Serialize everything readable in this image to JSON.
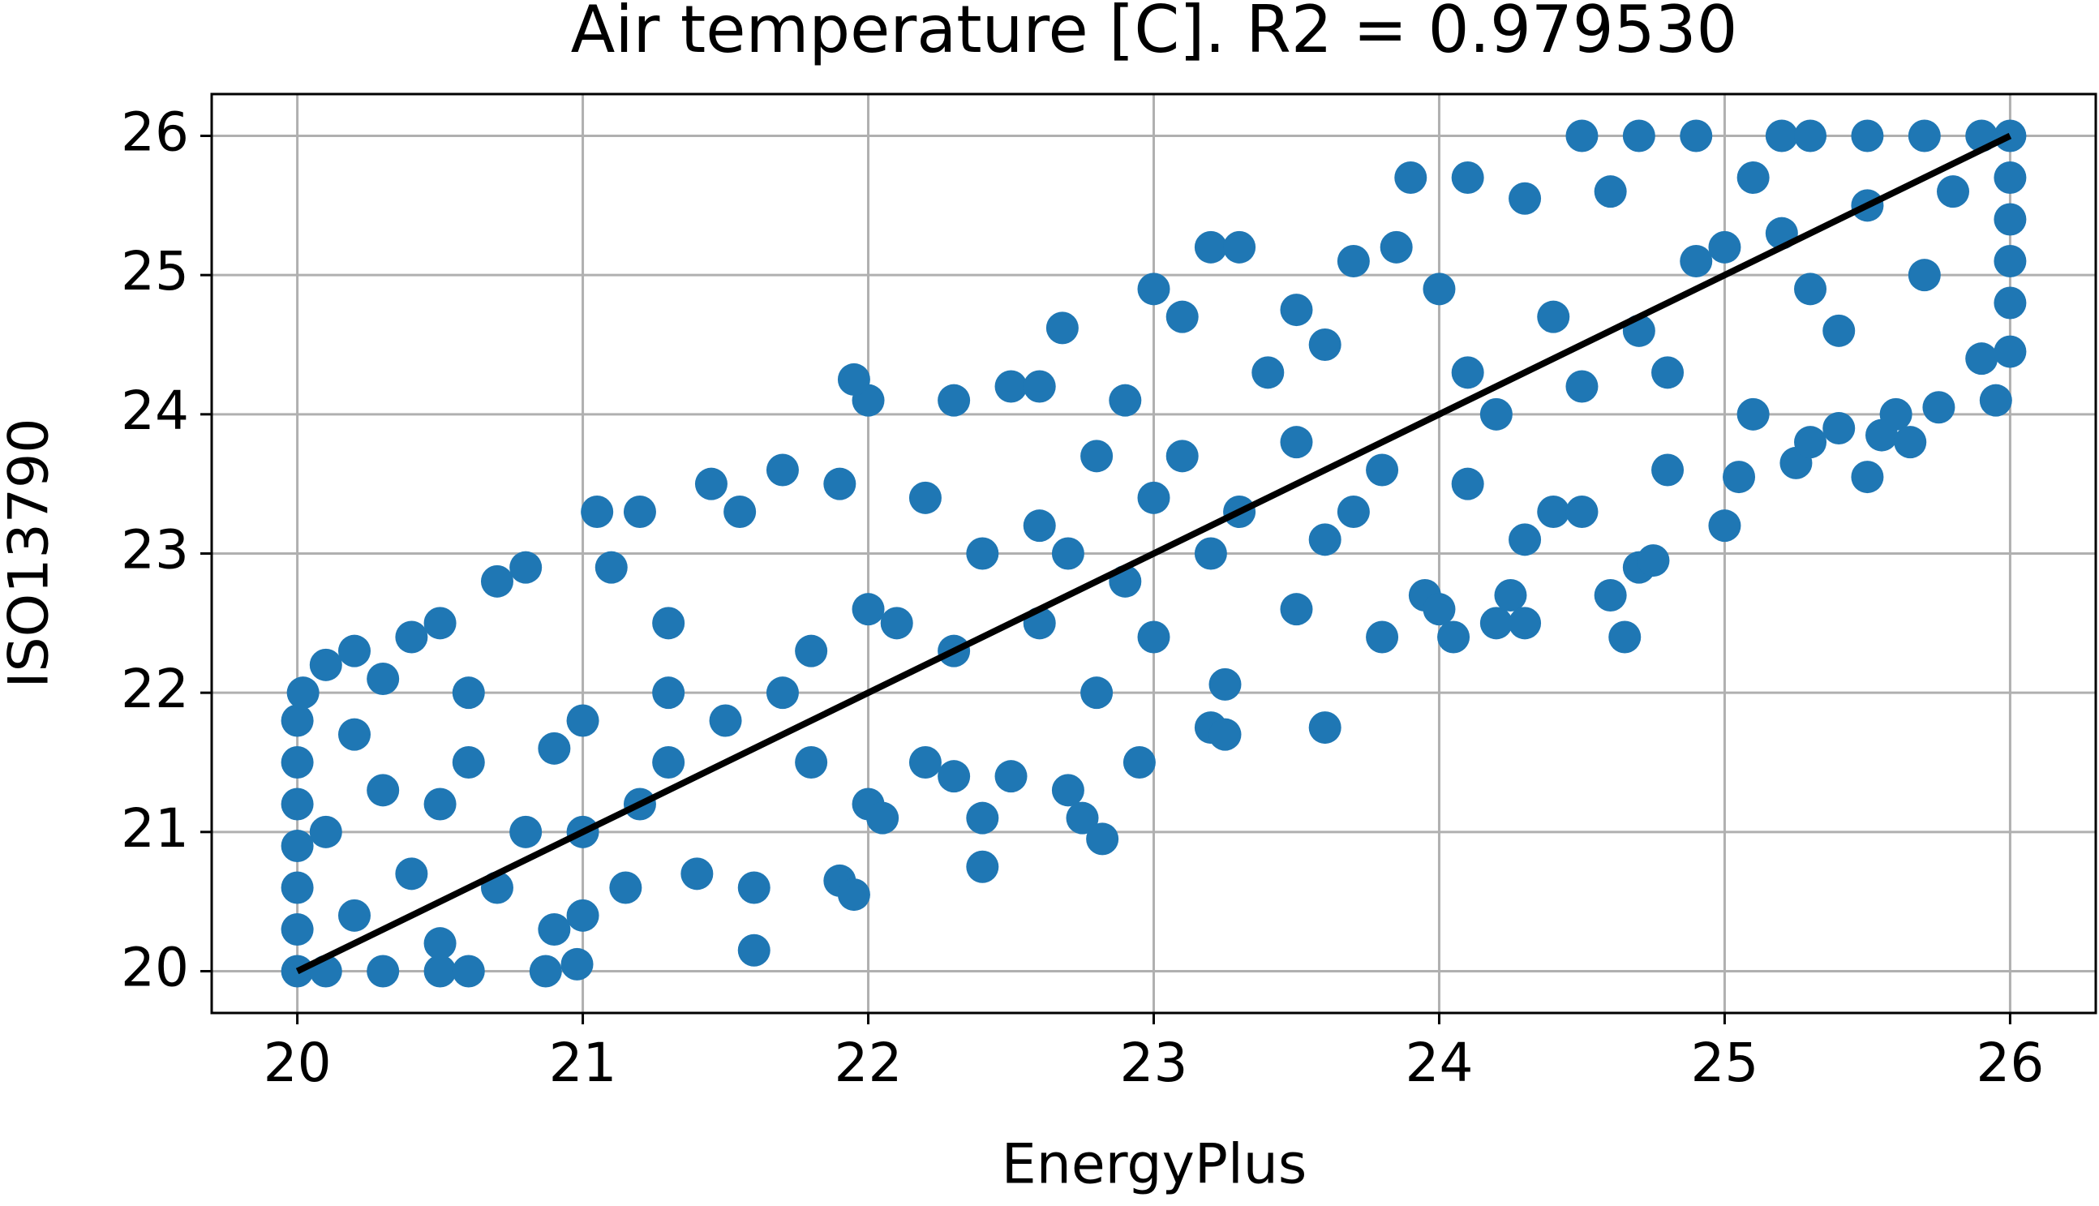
{
  "chart_data": {
    "type": "scatter",
    "title": "Air temperature [C]. R2 = 0.979530",
    "x_label": "EnergyPlus",
    "y_label": "ISO13790",
    "xlim": [
      19.7,
      26.3
    ],
    "ylim": [
      19.7,
      26.3
    ],
    "xticks": [
      20,
      21,
      22,
      23,
      24,
      25,
      26
    ],
    "yticks": [
      20,
      21,
      22,
      23,
      24,
      25,
      26
    ],
    "grid": true,
    "series": [
      {
        "color": "#1f77b4",
        "kind": "points",
        "x": [
          20,
          20,
          20,
          20,
          20,
          20,
          20,
          20.02,
          20.1,
          20.3,
          20.5,
          20.6,
          20.2,
          20.4,
          20.1,
          20.3,
          20.2,
          20.1,
          20.2,
          20.4,
          20.5,
          20.3,
          20.6,
          20.7,
          20.8,
          20.6,
          20.8,
          20.9,
          20.87,
          20.98,
          21.0,
          20.7,
          20.5,
          21,
          21.05,
          21.2,
          21.1,
          21.3,
          21.0,
          21.2,
          21.4,
          21.15,
          21.5,
          21.45,
          21.55,
          21.7,
          21.3,
          21.6,
          21.6,
          21.8,
          21.9,
          22,
          21.95,
          21.9,
          21.95,
          22.0,
          22.05,
          22.2,
          22.3,
          22.1,
          22.2,
          22.3,
          22.4,
          22.4,
          22.5,
          22.5,
          22.6,
          22.68,
          22.6,
          22.7,
          22.8,
          22.7,
          22.75,
          22.82,
          22.8,
          22.9,
          22.95,
          23,
          23.0,
          23.1,
          23.2,
          23.1,
          23.3,
          23.25,
          23.2,
          23.25,
          23.3,
          23.4,
          23.5,
          23.5,
          23.6,
          23.6,
          23.7,
          23.7,
          23.8,
          23.85,
          23.9,
          23.95,
          24.0,
          24.0,
          24.05,
          24.1,
          24.1,
          24.2,
          24.25,
          24.3,
          24.3,
          24.3,
          24.4,
          24.5,
          24.5,
          24.6,
          24.6,
          24.65,
          24.7,
          24.75,
          24.8,
          24.5,
          24.7,
          24.9,
          25.0,
          25.05,
          25.1,
          25.2,
          25.3,
          25.25,
          25.3,
          25.4,
          25.5,
          25.55,
          25.6,
          25.65,
          25.75,
          25.9,
          25.95,
          26,
          26,
          26,
          26,
          26,
          26,
          25.5,
          25.7,
          25.9,
          25.5,
          25.2,
          24.9,
          24.8,
          25.4,
          25.7,
          25.8,
          25.1,
          25.3,
          20.5,
          20.9,
          21.3,
          21.7,
          22.0,
          22.3,
          22.6,
          22.9,
          23.2,
          23.5,
          23.8,
          24.1,
          24.4,
          24.7,
          25.0,
          21.8,
          22.4,
          23.0,
          23.6,
          24.2
        ],
        "values": [
          20,
          20.3,
          20.6,
          20.9,
          21.2,
          21.5,
          21.8,
          22.0,
          20,
          20,
          20,
          20,
          20.4,
          20.7,
          21,
          21.3,
          21.7,
          22.2,
          22.3,
          22.4,
          22.5,
          22.1,
          22.0,
          22.8,
          22.9,
          21.5,
          21,
          20.3,
          20.0,
          20.05,
          20.4,
          20.6,
          20.2,
          21,
          23.3,
          23.3,
          22.9,
          22.5,
          21.8,
          21.2,
          20.7,
          20.6,
          21.8,
          23.5,
          23.3,
          23.6,
          22,
          20.6,
          20.15,
          22.3,
          23.5,
          24.1,
          24.25,
          20.65,
          20.55,
          21.2,
          21.1,
          23.4,
          24.1,
          22.5,
          21.5,
          21.4,
          20.75,
          21.1,
          21.4,
          24.2,
          24.2,
          24.62,
          22.5,
          23.0,
          23.7,
          21.3,
          21.1,
          20.95,
          22,
          24.1,
          21.5,
          24.9,
          22.4,
          24.7,
          25.2,
          23.7,
          25.2,
          22.06,
          21.75,
          21.7,
          23.3,
          24.3,
          24.75,
          22.6,
          21.75,
          24.5,
          25.1,
          23.3,
          22.4,
          25.2,
          25.7,
          22.7,
          24.9,
          22.6,
          22.4,
          25.7,
          23.5,
          22.5,
          22.7,
          22.5,
          23.1,
          25.55,
          23.3,
          24.2,
          23.3,
          25.6,
          22.7,
          22.4,
          22.9,
          22.95,
          23.6,
          26,
          26,
          26,
          23.2,
          23.55,
          24.0,
          26,
          26,
          23.65,
          23.8,
          23.9,
          23.55,
          23.85,
          24.0,
          23.8,
          24.05,
          24.4,
          24.1,
          24.45,
          24.8,
          25.1,
          25.4,
          25.7,
          26,
          26,
          26,
          26,
          25.5,
          25.3,
          25.1,
          24.3,
          24.6,
          25.0,
          25.6,
          25.7,
          24.9,
          21.2,
          21.6,
          21.5,
          22.0,
          22.6,
          22.3,
          23.2,
          22.8,
          23.0,
          23.8,
          23.6,
          24.3,
          24.7,
          24.6,
          25.2,
          21.5,
          23.0,
          23.4,
          23.1,
          24.0
        ]
      },
      {
        "color": "#000000",
        "kind": "line",
        "x": [
          20,
          26
        ],
        "values": [
          20,
          26
        ]
      }
    ]
  }
}
